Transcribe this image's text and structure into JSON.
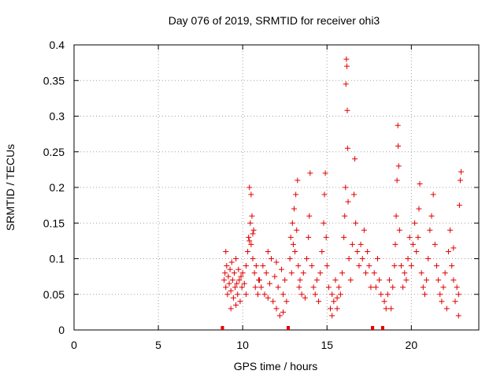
{
  "chart_data": {
    "type": "scatter",
    "title": "Day 076 of 2019, SRMTID for receiver ohi3",
    "xlabel": "GPS time / hours",
    "ylabel": "SRMTID / TECUs",
    "xlim": [
      0,
      24
    ],
    "ylim": [
      0,
      0.4
    ],
    "xticks": [
      0,
      5,
      10,
      15,
      20
    ],
    "xtick_labels": [
      "0",
      "5",
      "10",
      "15",
      "20"
    ],
    "yticks": [
      0,
      0.05,
      0.1,
      0.15,
      0.2,
      0.25,
      0.3,
      0.35,
      0.4
    ],
    "ytick_labels": [
      "0",
      "0.05",
      "0.1",
      "0.15",
      "0.2",
      "0.25",
      "0.3",
      "0.35",
      "0.4"
    ],
    "grid": true,
    "marker": "+",
    "color": "#e00000",
    "gap_markers_x": [
      8.8,
      12.7,
      17.7,
      18.3
    ],
    "series": [
      {
        "name": "SRMTID",
        "points": [
          [
            8.9,
            0.07
          ],
          [
            8.95,
            0.08
          ],
          [
            9.0,
            0.06
          ],
          [
            9.05,
            0.09
          ],
          [
            9.1,
            0.05
          ],
          [
            9.15,
            0.075
          ],
          [
            9.2,
            0.065
          ],
          [
            9.25,
            0.085
          ],
          [
            9.3,
            0.055
          ],
          [
            9.35,
            0.095
          ],
          [
            9.4,
            0.07
          ],
          [
            9.45,
            0.045
          ],
          [
            9.5,
            0.08
          ],
          [
            9.55,
            0.06
          ],
          [
            9.6,
            0.1
          ],
          [
            9.65,
            0.065
          ],
          [
            9.7,
            0.05
          ],
          [
            9.75,
            0.085
          ],
          [
            9.8,
            0.07
          ],
          [
            9.85,
            0.04
          ],
          [
            9.9,
            0.075
          ],
          [
            9.95,
            0.06
          ],
          [
            9.0,
            0.11
          ],
          [
            9.3,
            0.03
          ],
          [
            9.6,
            0.035
          ],
          [
            10.0,
            0.08
          ],
          [
            10.1,
            0.065
          ],
          [
            10.2,
            0.09
          ],
          [
            10.3,
            0.11
          ],
          [
            10.35,
            0.13
          ],
          [
            10.4,
            0.2
          ],
          [
            10.45,
            0.15
          ],
          [
            10.5,
            0.12
          ],
          [
            10.55,
            0.16
          ],
          [
            10.6,
            0.1
          ],
          [
            10.65,
            0.14
          ],
          [
            10.7,
            0.08
          ],
          [
            10.75,
            0.06
          ],
          [
            10.8,
            0.09
          ],
          [
            10.9,
            0.05
          ],
          [
            10.95,
            0.07
          ],
          [
            10.5,
            0.19
          ],
          [
            10.4,
            0.125
          ],
          [
            10.6,
            0.135
          ],
          [
            10.2,
            0.05
          ],
          [
            11.0,
            0.07
          ],
          [
            11.1,
            0.06
          ],
          [
            11.2,
            0.09
          ],
          [
            11.3,
            0.05
          ],
          [
            11.4,
            0.08
          ],
          [
            11.5,
            0.045
          ],
          [
            11.6,
            0.065
          ],
          [
            11.7,
            0.1
          ],
          [
            11.8,
            0.04
          ],
          [
            11.9,
            0.075
          ],
          [
            12.0,
            0.03
          ],
          [
            12.1,
            0.06
          ],
          [
            12.2,
            0.02
          ],
          [
            12.3,
            0.085
          ],
          [
            12.4,
            0.05
          ],
          [
            12.5,
            0.07
          ],
          [
            12.6,
            0.04
          ],
          [
            11.5,
            0.11
          ],
          [
            12.0,
            0.095
          ],
          [
            12.4,
            0.025
          ],
          [
            12.8,
            0.1
          ],
          [
            12.85,
            0.13
          ],
          [
            12.9,
            0.08
          ],
          [
            12.95,
            0.15
          ],
          [
            13.0,
            0.12
          ],
          [
            13.05,
            0.17
          ],
          [
            13.1,
            0.11
          ],
          [
            13.15,
            0.19
          ],
          [
            13.2,
            0.14
          ],
          [
            13.25,
            0.21
          ],
          [
            13.3,
            0.09
          ],
          [
            13.35,
            0.06
          ],
          [
            13.4,
            0.07
          ],
          [
            13.5,
            0.05
          ],
          [
            13.6,
            0.08
          ],
          [
            13.7,
            0.045
          ],
          [
            13.8,
            0.1
          ],
          [
            13.9,
            0.13
          ],
          [
            13.95,
            0.16
          ],
          [
            14.0,
            0.22
          ],
          [
            14.1,
            0.09
          ],
          [
            14.2,
            0.06
          ],
          [
            14.3,
            0.05
          ],
          [
            14.4,
            0.07
          ],
          [
            14.5,
            0.04
          ],
          [
            14.6,
            0.08
          ],
          [
            14.7,
            0.11
          ],
          [
            14.8,
            0.15
          ],
          [
            14.85,
            0.19
          ],
          [
            14.9,
            0.22
          ],
          [
            14.95,
            0.13
          ],
          [
            15.0,
            0.09
          ],
          [
            15.1,
            0.06
          ],
          [
            15.2,
            0.03
          ],
          [
            15.3,
            0.05
          ],
          [
            15.4,
            0.04
          ],
          [
            15.5,
            0.07
          ],
          [
            15.6,
            0.03
          ],
          [
            15.7,
            0.06
          ],
          [
            15.8,
            0.05
          ],
          [
            15.9,
            0.08
          ],
          [
            15.3,
            0.02
          ],
          [
            15.6,
            0.045
          ],
          [
            16.0,
            0.13
          ],
          [
            16.05,
            0.16
          ],
          [
            16.1,
            0.2
          ],
          [
            16.12,
            0.345
          ],
          [
            16.15,
            0.38
          ],
          [
            16.18,
            0.37
          ],
          [
            16.2,
            0.308
          ],
          [
            16.22,
            0.255
          ],
          [
            16.25,
            0.18
          ],
          [
            16.3,
            0.1
          ],
          [
            16.4,
            0.07
          ],
          [
            16.5,
            0.12
          ],
          [
            16.6,
            0.19
          ],
          [
            16.65,
            0.24
          ],
          [
            16.7,
            0.15
          ],
          [
            16.8,
            0.11
          ],
          [
            16.9,
            0.09
          ],
          [
            17.0,
            0.12
          ],
          [
            17.1,
            0.1
          ],
          [
            17.2,
            0.14
          ],
          [
            17.3,
            0.08
          ],
          [
            17.4,
            0.11
          ],
          [
            17.5,
            0.09
          ],
          [
            17.6,
            0.06
          ],
          [
            17.8,
            0.08
          ],
          [
            17.9,
            0.06
          ],
          [
            18.0,
            0.1
          ],
          [
            18.1,
            0.07
          ],
          [
            18.2,
            0.05
          ],
          [
            18.4,
            0.04
          ],
          [
            18.5,
            0.03
          ],
          [
            18.6,
            0.05
          ],
          [
            18.7,
            0.07
          ],
          [
            18.8,
            0.03
          ],
          [
            18.9,
            0.06
          ],
          [
            19.0,
            0.09
          ],
          [
            19.05,
            0.12
          ],
          [
            19.1,
            0.16
          ],
          [
            19.15,
            0.21
          ],
          [
            19.2,
            0.287
          ],
          [
            19.22,
            0.258
          ],
          [
            19.25,
            0.23
          ],
          [
            19.3,
            0.14
          ],
          [
            19.4,
            0.09
          ],
          [
            19.5,
            0.06
          ],
          [
            19.6,
            0.08
          ],
          [
            19.7,
            0.07
          ],
          [
            19.8,
            0.1
          ],
          [
            19.9,
            0.13
          ],
          [
            20.0,
            0.09
          ],
          [
            20.1,
            0.12
          ],
          [
            20.2,
            0.15
          ],
          [
            20.3,
            0.11
          ],
          [
            20.4,
            0.13
          ],
          [
            20.45,
            0.17
          ],
          [
            20.5,
            0.205
          ],
          [
            20.6,
            0.08
          ],
          [
            20.7,
            0.06
          ],
          [
            20.8,
            0.05
          ],
          [
            20.9,
            0.07
          ],
          [
            21.0,
            0.1
          ],
          [
            21.1,
            0.14
          ],
          [
            21.2,
            0.16
          ],
          [
            21.3,
            0.19
          ],
          [
            21.4,
            0.12
          ],
          [
            21.5,
            0.09
          ],
          [
            21.6,
            0.07
          ],
          [
            21.7,
            0.05
          ],
          [
            21.8,
            0.04
          ],
          [
            21.9,
            0.06
          ],
          [
            22.0,
            0.08
          ],
          [
            22.1,
            0.03
          ],
          [
            22.2,
            0.11
          ],
          [
            22.3,
            0.14
          ],
          [
            22.4,
            0.09
          ],
          [
            22.5,
            0.07
          ],
          [
            22.6,
            0.04
          ],
          [
            22.7,
            0.06
          ],
          [
            22.8,
            0.05
          ],
          [
            22.85,
            0.175
          ],
          [
            22.9,
            0.21
          ],
          [
            22.95,
            0.222
          ],
          [
            22.8,
            0.02
          ],
          [
            22.5,
            0.115
          ]
        ]
      }
    ]
  }
}
